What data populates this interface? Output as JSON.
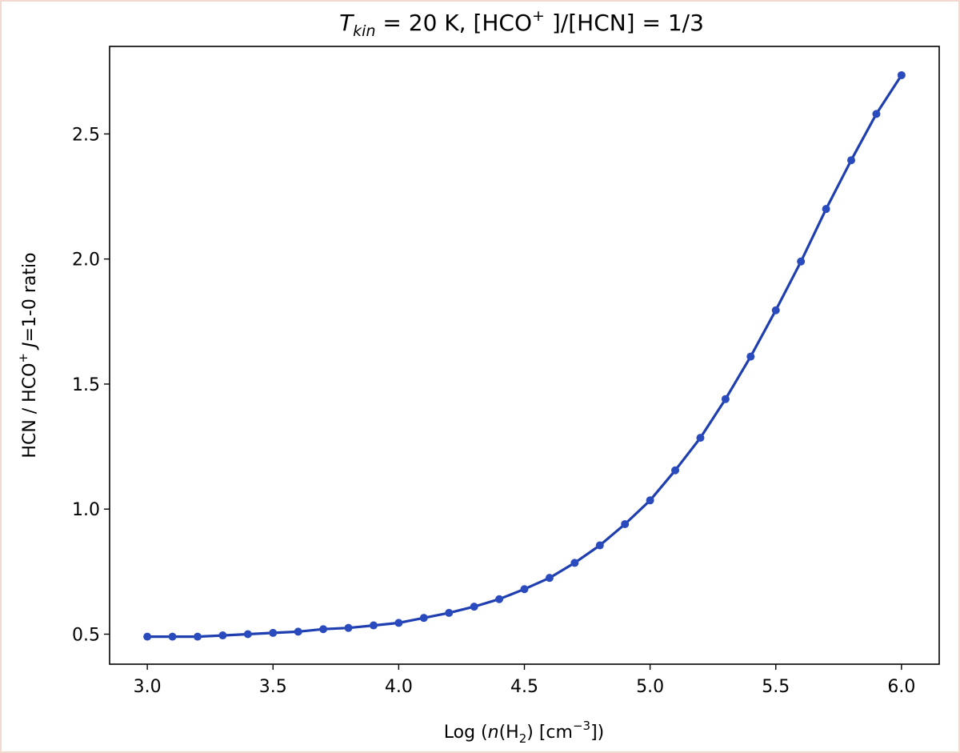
{
  "chart_data": {
    "type": "line",
    "title": {
      "base": "T",
      "sub": "kin",
      "rest1": " = 20 K, [HCO",
      "sup": "+",
      "rest2": " ]/[HCN] = 1/3"
    },
    "xlabel": {
      "pre": "Log (",
      "italic": "n",
      "mid": "(H",
      "sub": "2",
      "mid2": ") [cm",
      "sup": "−3",
      "post": "])"
    },
    "ylabel": {
      "pre": "HCN / HCO",
      "sup": "+",
      "space": " ",
      "italic": "J",
      "post": "=1-0 ratio"
    },
    "xlim": [
      2.85,
      6.15
    ],
    "ylim": [
      0.38,
      2.85
    ],
    "xticks": [
      3.0,
      3.5,
      4.0,
      4.5,
      5.0,
      5.5,
      6.0
    ],
    "xtick_labels": [
      "3.0",
      "3.5",
      "4.0",
      "4.5",
      "5.0",
      "5.5",
      "6.0"
    ],
    "yticks": [
      0.5,
      1.0,
      1.5,
      2.0,
      2.5
    ],
    "ytick_labels": [
      "0.5",
      "1.0",
      "1.5",
      "2.0",
      "2.5"
    ],
    "grid": false,
    "colors": {
      "line": "#1f3fb0",
      "marker": "#2a4bbd",
      "axes_frame": "#000000",
      "page_border": "#f2d9cf"
    },
    "series": [
      {
        "x": [
          3.0,
          3.1,
          3.2,
          3.3,
          3.4,
          3.5,
          3.6,
          3.7,
          3.8,
          3.9,
          4.0,
          4.1,
          4.2,
          4.3,
          4.4,
          4.5,
          4.6,
          4.7,
          4.8,
          4.9,
          5.0,
          5.1,
          5.2,
          5.3,
          5.4,
          5.5,
          5.6,
          5.7,
          5.8,
          5.9,
          6.0
        ],
        "y": [
          0.49,
          0.49,
          0.49,
          0.495,
          0.5,
          0.505,
          0.51,
          0.52,
          0.525,
          0.535,
          0.545,
          0.565,
          0.585,
          0.61,
          0.64,
          0.68,
          0.725,
          0.785,
          0.855,
          0.94,
          1.035,
          1.155,
          1.285,
          1.44,
          1.61,
          1.795,
          1.99,
          2.2,
          2.395,
          2.58,
          2.735
        ]
      }
    ]
  }
}
